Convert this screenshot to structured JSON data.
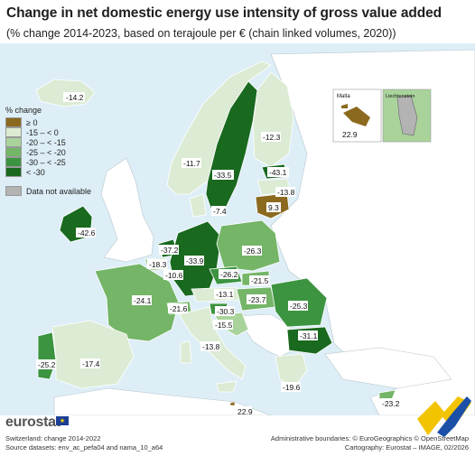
{
  "title": "Change in net domestic energy use intensity of gross value added",
  "subtitle": "(% change 2014-2023, based on terajoule per € (chain linked volumes, 2020))",
  "legend": {
    "title": "% change",
    "classes": [
      {
        "label": "≥ 0",
        "color": "#8b6a1f"
      },
      {
        "label": "-15 – < 0",
        "color": "#dcebd3"
      },
      {
        "label": "-20 – < -15",
        "color": "#a9d39b"
      },
      {
        "label": "-25 – < -20",
        "color": "#74b567"
      },
      {
        "label": "-30 – < -25",
        "color": "#3c9440"
      },
      {
        "label": "< -30",
        "color": "#19691f"
      }
    ],
    "not_available_label": "Data not available",
    "not_available_color": "#b3b3b3"
  },
  "insets": {
    "malta": {
      "name": "Malta",
      "value": "22.9"
    },
    "liechtenstein": {
      "name": "Liechtenstein"
    }
  },
  "labels": {
    "iceland": "-14.2",
    "norway": "-11.7",
    "sweden": "-33.5",
    "finland": "-12.3",
    "estonia": "-43.1",
    "latvia": "-13.8",
    "lithuania": "9.3",
    "denmark": "-7.4",
    "ireland": "-42.6",
    "netherlands": "-37.2",
    "belgium": "-18.3",
    "luxembourg": "-10.6",
    "germany": "-33.9",
    "poland": "-26.3",
    "czechia": "-26.2",
    "slovakia": "-21.5",
    "austria": "-13.1",
    "hungary": "-23.7",
    "romania": "-25.3",
    "slovenia": "-30.3",
    "croatia": "-15.5",
    "bulgaria": "-31.1",
    "france": "-24.1",
    "switzerland": "-21.6",
    "italy": "-13.8",
    "portugal": "-25.2",
    "spain": "-17.4",
    "greece": "-19.6",
    "cyprus": "-23.2",
    "malta_main": "22.9"
  },
  "brand": "eurostat",
  "footer_left": [
    "Switzerland: change 2014-2022",
    "Source datasets: env_ac_pefa04 and nama_10_a64"
  ],
  "footer_right": [
    "Administrative boundaries: © EuroGeographics © OpenStreetMap",
    "Cartography: Eurostat – IMAGE, 02/2026"
  ]
}
